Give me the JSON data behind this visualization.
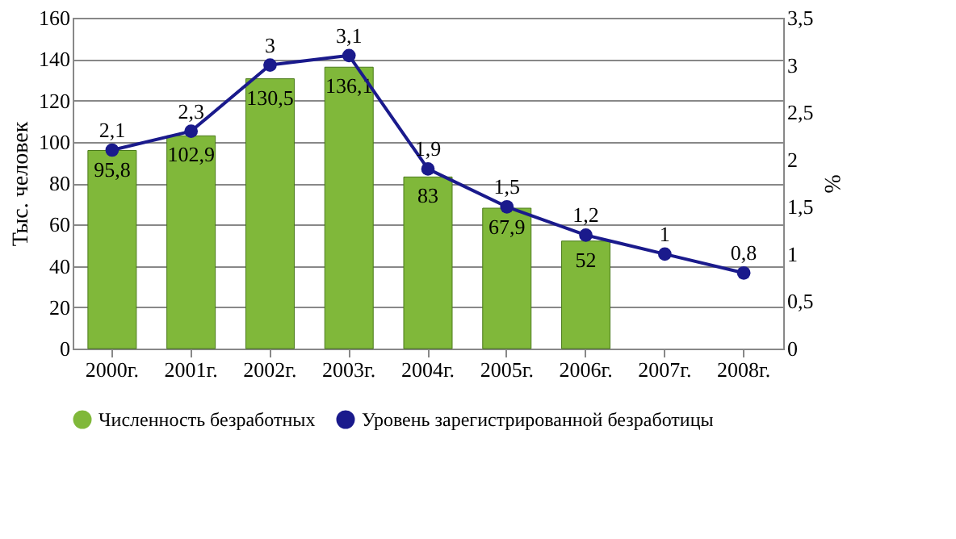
{
  "chart_data": {
    "type": "bar",
    "categories": [
      "2000г.",
      "2001г.",
      "2002г.",
      "2003г.",
      "2004г.",
      "2005г.",
      "2006г.",
      "2007г.",
      "2008г."
    ],
    "ylabel": "Тыс. человек",
    "y2label": "%",
    "ylim": [
      0,
      160
    ],
    "yticks": [
      0,
      20,
      40,
      60,
      80,
      100,
      120,
      140,
      160
    ],
    "y2lim": [
      0,
      3.5
    ],
    "y2ticks": [
      0,
      {
        "value": 0.5,
        "label": "0,5"
      },
      1,
      {
        "value": 1.5,
        "label": "1,5"
      },
      2,
      {
        "value": 2.5,
        "label": "2,5"
      },
      3,
      {
        "value": 3.5,
        "label": "3,5"
      }
    ],
    "grid": "y",
    "legend": "bottom",
    "series": [
      {
        "name": "Численность безработных",
        "color": "#80b83a",
        "values": [
          95.8,
          102.9,
          130.5,
          136.1,
          83,
          67.9,
          52,
          null,
          null
        ],
        "value_labels": [
          "95,8",
          "102,9",
          "130,5",
          "136,1",
          "83",
          "67,9",
          "52",
          null,
          null
        ]
      },
      {
        "name": "Уровень зарегистрированной безработицы",
        "type": "line",
        "axis": "y2",
        "color": "#1a1a8c",
        "marker": "circle",
        "values": [
          2.1,
          2.3,
          3,
          3.1,
          1.9,
          1.5,
          1.2,
          1,
          0.8
        ],
        "value_labels": [
          "2,1",
          "2,3",
          "3",
          "3,1",
          "1,9",
          "1,5",
          "1,2",
          "1",
          "0,8"
        ]
      }
    ]
  }
}
